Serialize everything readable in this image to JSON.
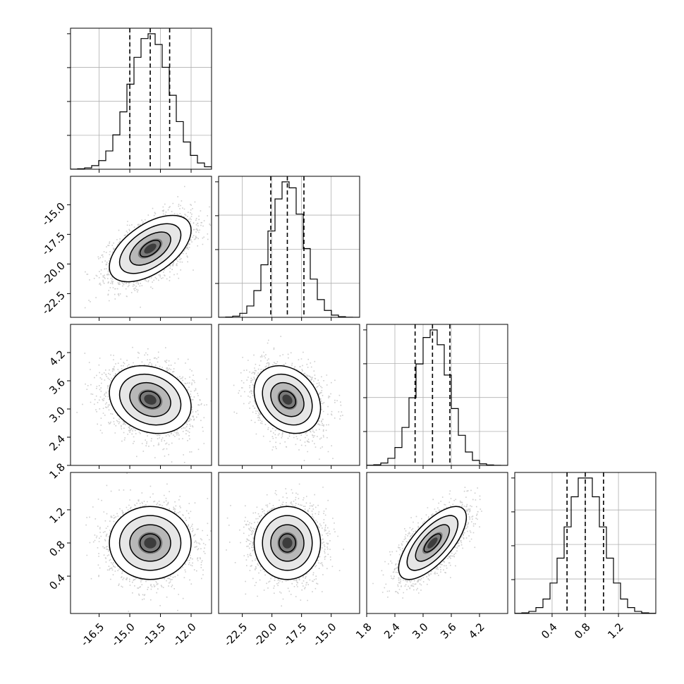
{
  "chart_data": {
    "type": "corner",
    "title": "",
    "grid": true,
    "variables": [
      {
        "index": 0,
        "mean": -14.0,
        "sd": 1.0,
        "range": [
          -17.9,
          -11.0
        ],
        "ticks": [
          "-16.5",
          "-15.0",
          "-13.5",
          "-12.0"
        ],
        "tick_values": [
          -16.5,
          -15.0,
          -13.5,
          -12.0
        ],
        "quantiles": [
          -15.0,
          -14.0,
          -13.05
        ]
      },
      {
        "index": 1,
        "mean": -18.7,
        "sd": 1.4,
        "range": [
          -24.5,
          -12.6
        ],
        "ticks": [
          "-22.5",
          "-20.0",
          "-17.5",
          "-15.0"
        ],
        "tick_values": [
          -22.5,
          -20.0,
          -17.5,
          -15.0
        ],
        "quantiles": [
          -20.1,
          -18.7,
          -17.3
        ]
      },
      {
        "index": 2,
        "mean": 3.2,
        "sd": 0.36,
        "range": [
          1.8,
          4.8
        ],
        "ticks": [
          "1.8",
          "2.4",
          "3.0",
          "3.6",
          "4.2"
        ],
        "tick_values": [
          1.8,
          2.4,
          3.0,
          3.6,
          4.2
        ],
        "quantiles": [
          2.83,
          3.2,
          3.57
        ]
      },
      {
        "index": 3,
        "mean": 0.8,
        "sd": 0.22,
        "range": [
          -0.05,
          1.65
        ],
        "ticks": [
          "0.4",
          "0.8",
          "1.2"
        ],
        "tick_values": [
          0.4,
          0.8,
          1.2
        ],
        "quantiles": [
          0.58,
          0.8,
          1.02
        ]
      }
    ],
    "correlations": [
      {
        "pair": [
          0,
          1
        ],
        "rho": 0.55
      },
      {
        "pair": [
          0,
          2
        ],
        "rho": -0.2
      },
      {
        "pair": [
          0,
          3
        ],
        "rho": 0.0
      },
      {
        "pair": [
          1,
          2
        ],
        "rho": -0.25
      },
      {
        "pair": [
          1,
          3
        ],
        "rho": 0.0
      },
      {
        "pair": [
          2,
          3
        ],
        "rho": 0.7
      }
    ],
    "histogram_bins": 20,
    "contour_levels_sigma": [
      0.5,
      1.0,
      1.5,
      2.0
    ],
    "colors": {
      "line": "#000000",
      "points": "#a6a6a6",
      "grid": "#b0b0b0"
    }
  }
}
